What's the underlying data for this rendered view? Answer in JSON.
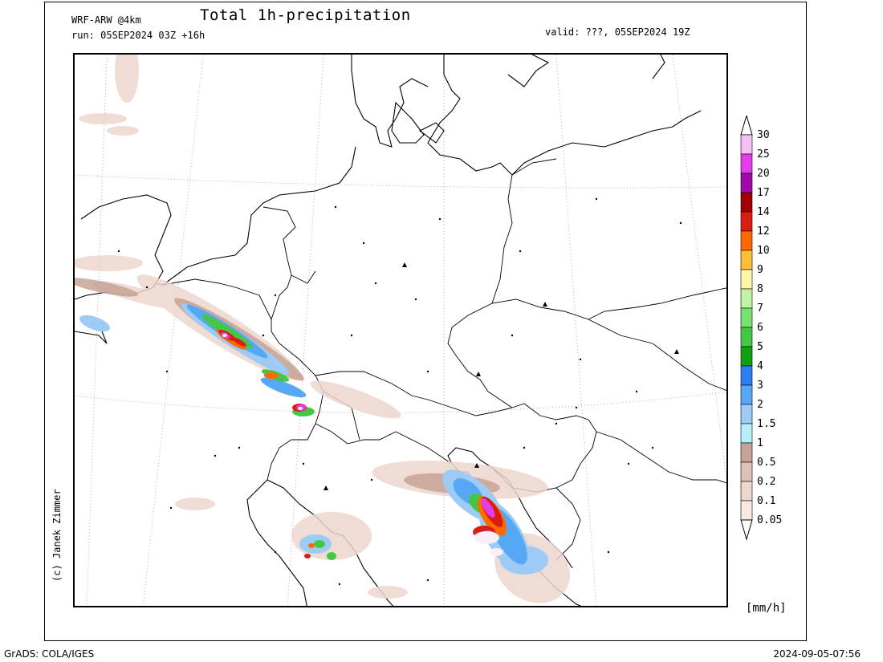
{
  "header": {
    "model": "WRF-ARW @4km",
    "title": "Total 1h-precipitation",
    "run": "run: 05SEP2024 03Z +16h",
    "valid": "valid: ???, 05SEP2024 19Z"
  },
  "map": {
    "field": "precipitation",
    "features": [
      "coastlines",
      "country-borders",
      "lat-lon-grid",
      "city-markers",
      "mountain-peak-markers"
    ],
    "precip_regions": [
      "belgium-luxembourg-band",
      "eastern-france-band",
      "northern-italy-alps",
      "slovenia-croatia-adriatic",
      "apennines"
    ]
  },
  "colorbar": {
    "levels": [
      "30",
      "25",
      "20",
      "17",
      "14",
      "12",
      "10",
      "9",
      "8",
      "7",
      "6",
      "5",
      "4",
      "3",
      "2",
      "1.5",
      "1",
      "0.5",
      "0.2",
      "0.1",
      "0.05"
    ],
    "colors": [
      "#f2c0f2",
      "#e23ee8",
      "#a10aa8",
      "#a00000",
      "#d81e10",
      "#ff6a00",
      "#ffbe3a",
      "#fff5a8",
      "#c2f2a8",
      "#7ae070",
      "#44c844",
      "#10a010",
      "#2f7ef0",
      "#56a8f5",
      "#9dcbf5",
      "#b6f0f7",
      "#c7a397",
      "#ddc1b6",
      "#ecd6cd",
      "#f6eae3"
    ],
    "unit": "[mm/h]"
  },
  "credit": "(c) Janek Zimmer",
  "footer": {
    "left": "GrADS: COLA/IGES",
    "right": "2024-09-05-07:56"
  }
}
